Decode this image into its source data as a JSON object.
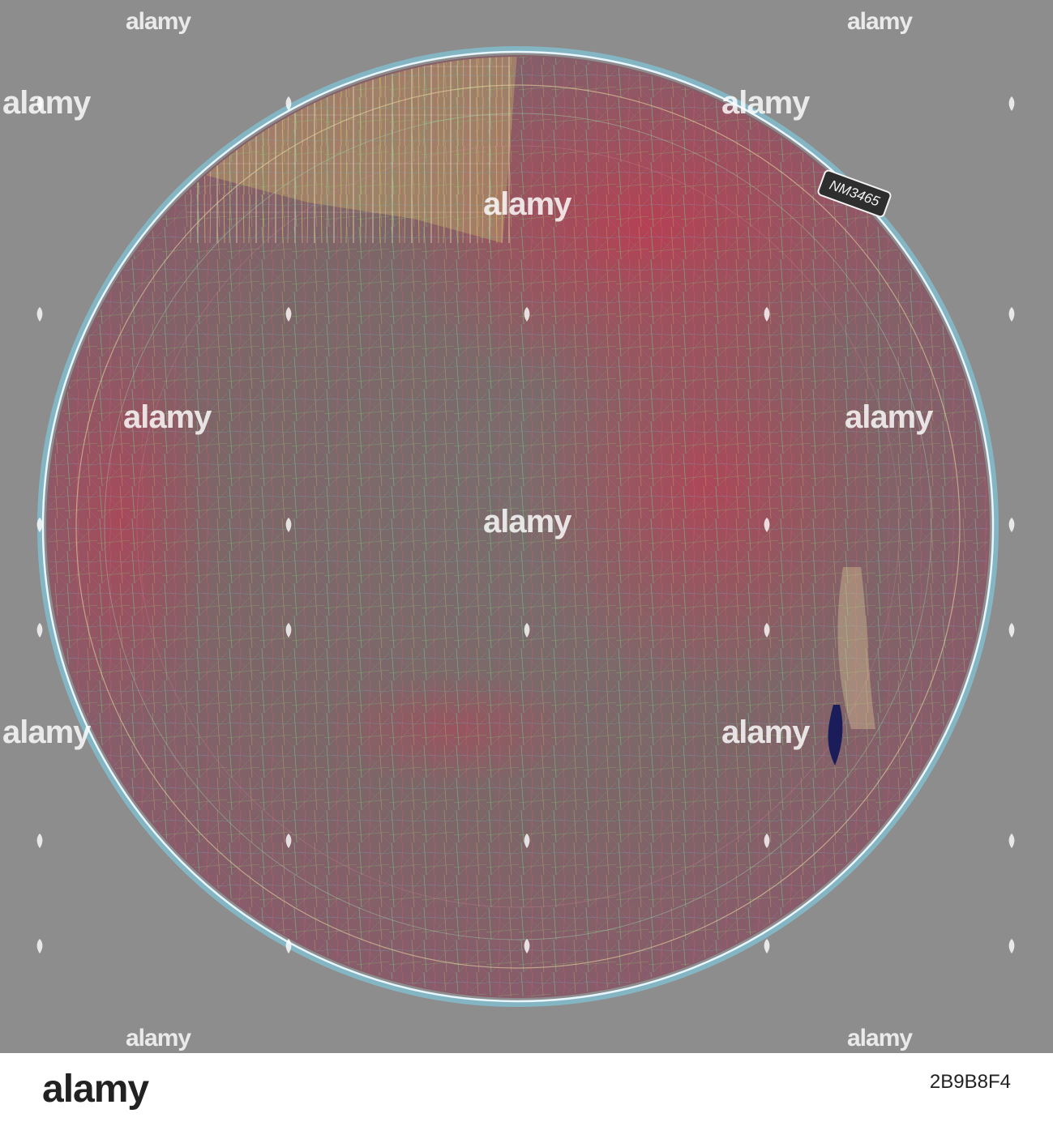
{
  "photo": {
    "background_color": "#8d8d8d",
    "subject_label": "NM3465",
    "watermark_text": "alamy"
  },
  "watermarks": [
    {
      "text": "alamy",
      "size": "big"
    },
    {
      "text": "alamy",
      "size": "big"
    },
    {
      "text": "alamy",
      "size": "big"
    },
    {
      "text": "alamy",
      "size": "big"
    },
    {
      "text": "alamy",
      "size": "big"
    },
    {
      "text": "alamy",
      "size": "big"
    },
    {
      "text": "alamy",
      "size": "big"
    },
    {
      "text": "alamy",
      "size": "big"
    },
    {
      "text": "alamy",
      "size": "small"
    },
    {
      "text": "alamy",
      "size": "small"
    },
    {
      "text": "alamy",
      "size": "small"
    },
    {
      "text": "alamy",
      "size": "small"
    }
  ],
  "footer": {
    "logo": "alamy",
    "image_id": "2B9B8F4"
  }
}
